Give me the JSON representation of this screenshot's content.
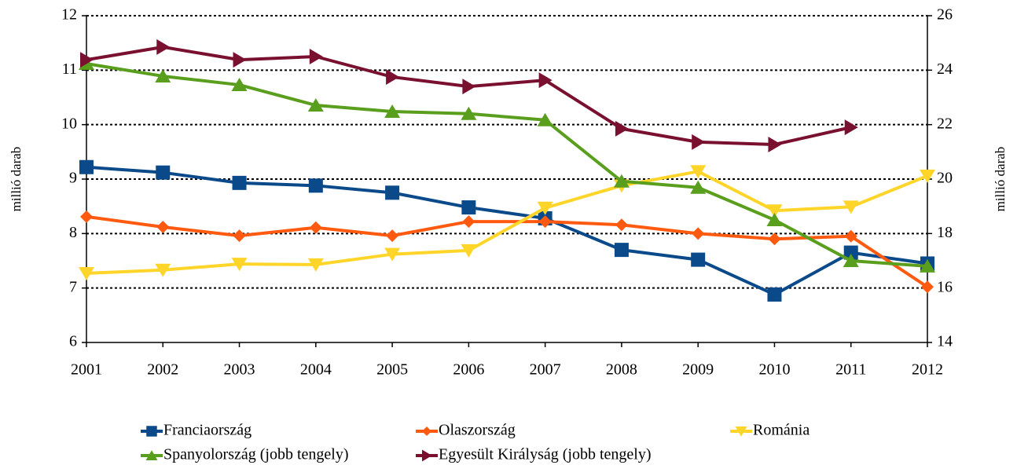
{
  "chart_data": {
    "type": "line",
    "y_label": "millió darab",
    "y2_label": "millió darab",
    "categories": [
      "2001",
      "2002",
      "2003",
      "2004",
      "2005",
      "2006",
      "2007",
      "2008",
      "2009",
      "2010",
      "2011",
      "2012"
    ],
    "ylim": [
      6,
      12
    ],
    "yticks": [
      6,
      7,
      8,
      9,
      10,
      11,
      12
    ],
    "y2lim": [
      14,
      26
    ],
    "y2ticks": [
      14,
      16,
      18,
      20,
      22,
      24,
      26
    ],
    "grid": true,
    "legend": "bottom",
    "series": [
      {
        "name": "Franciaország",
        "color": "#0a4a8a",
        "marker": "square",
        "values": [
          9.22,
          9.12,
          8.93,
          8.88,
          8.75,
          8.48,
          8.28,
          7.7,
          7.52,
          6.88,
          7.65,
          7.45
        ]
      },
      {
        "name": "Olaszország",
        "color": "#ff5a10",
        "marker": "diamond",
        "values": [
          8.31,
          8.12,
          7.96,
          8.11,
          7.96,
          8.22,
          8.22,
          8.16,
          8.0,
          7.9,
          7.95,
          7.02
        ]
      },
      {
        "name": "Románia",
        "color": "#ffd52a",
        "marker": "triangle-down",
        "values": [
          7.27,
          7.33,
          7.44,
          7.43,
          7.62,
          7.69,
          8.47,
          8.88,
          9.14,
          8.42,
          8.49,
          9.06
        ]
      },
      {
        "name": "Spanyolország (jobb tengely)",
        "color": "#5a9e1e",
        "marker": "triangle-up",
        "axis": "y2",
        "values": [
          24.24,
          23.78,
          23.46,
          22.71,
          22.48,
          22.4,
          22.17,
          19.92,
          19.69,
          18.5,
          17.0,
          16.8
        ]
      },
      {
        "name": "Egyesült Királyság (jobb tengely)",
        "color": "#7a1030",
        "marker": "triangle-right",
        "axis": "y2",
        "values": [
          24.38,
          24.85,
          24.38,
          24.5,
          23.75,
          23.4,
          23.63,
          21.85,
          21.36,
          21.27,
          21.9,
          null
        ]
      }
    ]
  }
}
